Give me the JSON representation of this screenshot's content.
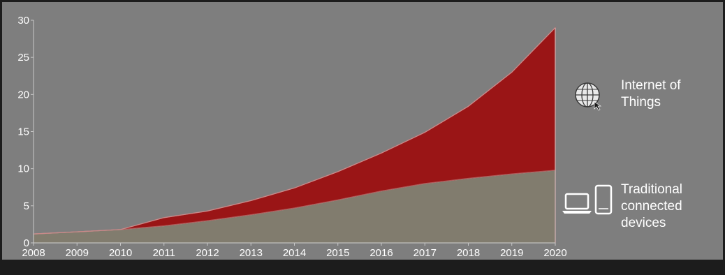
{
  "chart_data": {
    "type": "area",
    "stacked": true,
    "x": [
      2008,
      2009,
      2010,
      2011,
      2012,
      2013,
      2014,
      2015,
      2016,
      2017,
      2018,
      2019,
      2020
    ],
    "series": [
      {
        "name": "Traditional connected devices",
        "legend_lines": [
          "Traditional",
          "connected",
          "devices"
        ],
        "color": "#817c6e",
        "values": [
          1.2,
          1.5,
          1.8,
          2.3,
          3.0,
          3.8,
          4.7,
          5.8,
          7.0,
          8.0,
          8.7,
          9.3,
          9.8
        ]
      },
      {
        "name": "Internet of Things",
        "legend_lines": [
          "Internet of",
          "Things"
        ],
        "color": "#9a1516",
        "values": [
          0,
          0,
          0,
          1.1,
          1.3,
          1.9,
          2.7,
          3.8,
          5.1,
          6.9,
          9.7,
          13.7,
          19.2
        ]
      }
    ],
    "ylim": [
      0,
      30
    ],
    "yticks": [
      0,
      5,
      10,
      15,
      20,
      25,
      30
    ],
    "xlabel": "",
    "ylabel": "",
    "title": "",
    "grid": false,
    "legend_position": "right",
    "legend_icons": [
      "globe-icon",
      "laptop-icon",
      "phone-icon"
    ]
  }
}
